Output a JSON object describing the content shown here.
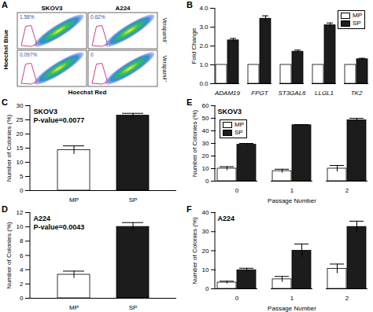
{
  "flow_panel": {
    "panel": "A",
    "samples": [
      "SKOV3",
      "A224"
    ],
    "conditions": [
      "Verapamil⁻",
      "Verapamil⁺"
    ],
    "x_label": "Hoechst Red",
    "y_label": "Hoechst Blue",
    "gate_percentages": [
      [
        "1.58%",
        "0.62%"
      ],
      [
        "0.097%",
        "0"
      ]
    ]
  },
  "chart_data": [
    {
      "panel": "B",
      "type": "bar",
      "categories": [
        "ADAM19",
        "FPGT",
        "ST3GAL6",
        "LLGL1",
        "TK2"
      ],
      "series": [
        {
          "name": "MP",
          "color": "#ffffff",
          "values": [
            1,
            1,
            1,
            1,
            1
          ]
        },
        {
          "name": "SP",
          "color": "#1c1c1c",
          "values": [
            2.3,
            3.45,
            1.7,
            3.1,
            1.3
          ],
          "errors": [
            0.1,
            0.15,
            0.08,
            0.12,
            0.05
          ]
        }
      ],
      "y_label": "Fold Change",
      "ylim": [
        0,
        4
      ],
      "yticks": [
        0,
        1,
        2,
        3,
        4
      ],
      "legend": "top-right"
    },
    {
      "panel": "C",
      "type": "bar",
      "categories": [
        "MP",
        "SP"
      ],
      "values": [
        14.3,
        26.5
      ],
      "errors": [
        1.5,
        0.8
      ],
      "colors": [
        "#ffffff",
        "#1c1c1c"
      ],
      "y_label": "Number of Colonies (%)",
      "ylim": [
        0,
        30
      ],
      "yticks": [
        0,
        5,
        10,
        15,
        20,
        25,
        30
      ],
      "annotations": [
        "SKOV3",
        "P-value=0.0077"
      ]
    },
    {
      "panel": "D",
      "type": "bar",
      "categories": [
        "MP",
        "SP"
      ],
      "values": [
        3.3,
        10
      ],
      "errors": [
        0.5,
        0.6
      ],
      "colors": [
        "#ffffff",
        "#1c1c1c"
      ],
      "y_label": "Number of Colonies (%)",
      "ylim": [
        0,
        12
      ],
      "yticks": [
        0,
        2,
        4,
        6,
        8,
        10,
        12
      ],
      "annotations": [
        "A224",
        "P-value=0.0043"
      ]
    },
    {
      "panel": "E",
      "type": "bar",
      "categories": [
        0,
        1,
        2
      ],
      "series": [
        {
          "name": "MP",
          "color": "#ffffff",
          "values": [
            10,
            8,
            10
          ],
          "errors": [
            1.5,
            1.5,
            2.5
          ]
        },
        {
          "name": "SP",
          "color": "#1c1c1c",
          "values": [
            29,
            44.5,
            48.5
          ],
          "errors": [
            1,
            0.5,
            1.5
          ]
        }
      ],
      "x_label": "Passage Number",
      "y_label": "Number of Colonies (%)",
      "ylim": [
        0,
        60
      ],
      "yticks": [
        0,
        10,
        20,
        30,
        40,
        50,
        60
      ],
      "annotations": [
        "SKOV3"
      ],
      "legend": "top-left"
    },
    {
      "panel": "F",
      "type": "bar",
      "categories": [
        0,
        1,
        2
      ],
      "series": [
        {
          "name": "MP",
          "color": "#ffffff",
          "values": [
            3.3,
            5,
            10.5
          ],
          "errors": [
            0.7,
            1.5,
            2.5
          ]
        },
        {
          "name": "SP",
          "color": "#1c1c1c",
          "values": [
            9.8,
            20,
            32.5
          ],
          "errors": [
            1,
            3.5,
            3
          ]
        }
      ],
      "x_label": "Passage Number",
      "y_label": "Number of Colonies (%)",
      "ylim": [
        0,
        40
      ],
      "yticks": [
        0,
        10,
        20,
        30,
        40
      ],
      "annotations": [
        "A224"
      ]
    }
  ]
}
